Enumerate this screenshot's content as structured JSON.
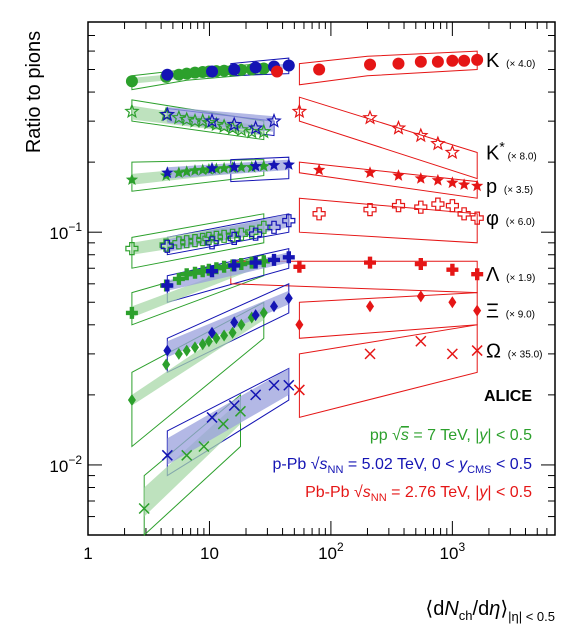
{
  "chart_data": {
    "type": "scatter",
    "xscale": "log",
    "yscale": "log",
    "xlim": [
      1,
      7000
    ],
    "ylim": [
      0.005,
      0.8
    ],
    "xlabel": "⟨dNch/dη⟩|η| < 0.5",
    "ylabel": "Ratio to pions",
    "grid": false,
    "x_tick_labels": [
      "1",
      "10",
      "10²",
      "10³"
    ],
    "y_tick_labels": [
      "10⁻²",
      "10⁻¹"
    ],
    "experiment_label": "ALICE",
    "colors": {
      "pp": "#2ca02c",
      "pPb": "#1414b4",
      "PbPb": "#e51616",
      "pp_band": "#a8d8a8",
      "pPb_band": "#9aa0dc"
    },
    "legend": [
      {
        "key": "pp",
        "text": "pp √s = 7 TeV, |y| < 0.5"
      },
      {
        "key": "pPb",
        "text": "p-Pb √sNN = 5.02 TeV, 0 < yCMS < 0.5"
      },
      {
        "key": "PbPb",
        "text": "Pb-Pb √sNN = 2.76 TeV, |y| < 0.5"
      }
    ],
    "series": [
      {
        "name": "K",
        "scale": "(× 4.0)",
        "marker": "circle",
        "pp": {
          "x": [
            2.3,
            4.4,
            5.6,
            6.5,
            7.6,
            8.8,
            9.9,
            11.4,
            13.2,
            15.5,
            18.3,
            22.3,
            28.0
          ],
          "y": [
            0.445,
            0.465,
            0.475,
            0.48,
            0.485,
            0.488,
            0.49,
            0.492,
            0.494,
            0.496,
            0.498,
            0.5,
            0.505
          ],
          "band": [
            [
              2.3,
              0.435,
              0.46
            ],
            [
              28.0,
              0.49,
              0.52
            ]
          ],
          "model": [
            [
              2.3,
              0.41,
              0.47
            ],
            [
              6.5,
              0.45,
              0.5
            ],
            [
              28.0,
              0.48,
              0.53
            ]
          ]
        },
        "pPb": {
          "x": [
            4.5,
            10.5,
            16.0,
            24.0,
            34.0,
            45.0
          ],
          "y": [
            0.475,
            0.49,
            0.5,
            0.51,
            0.515,
            0.52
          ],
          "band": [
            [
              4.5,
              0.465,
              0.485
            ],
            [
              45.0,
              0.505,
              0.53
            ]
          ],
          "model": [
            [
              15.0,
              0.47,
              0.53
            ],
            [
              45.0,
              0.48,
              0.56
            ]
          ]
        },
        "PbPb": {
          "x": [
            36.0,
            80.0,
            210.0,
            360.0,
            550.0,
            760.0,
            1000.0,
            1250.0,
            1600.0
          ],
          "y": [
            0.49,
            0.5,
            0.525,
            0.53,
            0.54,
            0.54,
            0.545,
            0.545,
            0.55
          ],
          "model": [
            [
              55.0,
              0.43,
              0.53
            ],
            [
              200.0,
              0.47,
              0.57
            ],
            [
              1600.0,
              0.5,
              0.6
            ]
          ]
        }
      },
      {
        "name": "K*",
        "scale": "(× 8.0)",
        "marker": "open-star",
        "pp": {
          "x": [
            2.3,
            4.4,
            5.6,
            6.5,
            7.6,
            8.8,
            9.9,
            11.4,
            13.2,
            15.5,
            18.3,
            22.3,
            28.0
          ],
          "y": [
            0.33,
            0.32,
            0.31,
            0.305,
            0.3,
            0.3,
            0.295,
            0.29,
            0.285,
            0.28,
            0.275,
            0.27,
            0.27
          ],
          "band": [
            [
              2.3,
              0.305,
              0.35
            ],
            [
              28.0,
              0.26,
              0.285
            ]
          ],
          "model": [
            [
              2.3,
              0.3,
              0.37
            ],
            [
              28.0,
              0.25,
              0.3
            ]
          ]
        },
        "pPb": {
          "x": [
            4.5,
            10.5,
            16.0,
            24.0,
            34.0
          ],
          "y": [
            0.32,
            0.3,
            0.29,
            0.28,
            0.3
          ],
          "band": [
            [
              4.5,
              0.295,
              0.345
            ],
            [
              34.0,
              0.27,
              0.315
            ]
          ],
          "model": [
            [
              4.5,
              0.3,
              0.34
            ],
            [
              34.0,
              0.26,
              0.3
            ]
          ]
        },
        "PbPb": {
          "x": [
            55.0,
            210.0,
            360.0,
            550.0,
            760.0,
            1000.0
          ],
          "y": [
            0.33,
            0.31,
            0.28,
            0.26,
            0.24,
            0.22
          ],
          "model": [
            [
              55.0,
              0.3,
              0.38
            ],
            [
              1600.0,
              0.17,
              0.22
            ]
          ]
        }
      },
      {
        "name": "p",
        "scale": "(× 3.5)",
        "marker": "star",
        "pp": {
          "x": [
            2.3,
            4.4,
            5.6,
            6.5,
            7.6,
            8.8,
            9.9,
            11.4,
            13.2,
            15.5,
            18.3,
            22.3,
            28.0
          ],
          "y": [
            0.168,
            0.175,
            0.18,
            0.182,
            0.184,
            0.185,
            0.186,
            0.187,
            0.188,
            0.189,
            0.19,
            0.19,
            0.192
          ],
          "band": [
            [
              2.3,
              0.16,
              0.178
            ],
            [
              28.0,
              0.185,
              0.2
            ]
          ],
          "model": [
            [
              2.3,
              0.15,
              0.2
            ],
            [
              28.0,
              0.175,
              0.205
            ]
          ]
        },
        "pPb": {
          "x": [
            4.5,
            10.5,
            16.0,
            24.0,
            34.0,
            45.0
          ],
          "y": [
            0.18,
            0.188,
            0.19,
            0.192,
            0.194,
            0.195
          ],
          "band": [
            [
              4.5,
              0.17,
              0.19
            ],
            [
              45.0,
              0.185,
              0.205
            ]
          ],
          "model": [
            [
              15.0,
              0.165,
              0.205
            ],
            [
              45.0,
              0.17,
              0.21
            ]
          ]
        },
        "PbPb": {
          "x": [
            80.0,
            210.0,
            360.0,
            550.0,
            760.0,
            1000.0,
            1250.0,
            1600.0
          ],
          "y": [
            0.185,
            0.18,
            0.175,
            0.17,
            0.167,
            0.163,
            0.16,
            0.158
          ],
          "model": [
            [
              55.0,
              0.18,
              0.2
            ],
            [
              1600.0,
              0.14,
              0.165
            ]
          ]
        }
      },
      {
        "name": "φ",
        "scale": "(× 6.0)",
        "marker": "open-cross",
        "pp": {
          "x": [
            2.3,
            4.4,
            5.6,
            6.5,
            7.6,
            8.8,
            9.9,
            11.4,
            13.2,
            15.5,
            18.3,
            22.3,
            28.0
          ],
          "y": [
            0.085,
            0.088,
            0.09,
            0.091,
            0.092,
            0.093,
            0.094,
            0.095,
            0.096,
            0.097,
            0.098,
            0.1,
            0.105
          ],
          "band": [
            [
              2.3,
              0.08,
              0.09
            ],
            [
              28.0,
              0.098,
              0.112
            ]
          ],
          "model": [
            [
              2.3,
              0.07,
              0.095
            ],
            [
              28.0,
              0.09,
              0.12
            ]
          ]
        },
        "pPb": {
          "x": [
            4.5,
            10.5,
            16.0,
            24.0,
            34.0,
            45.0
          ],
          "y": [
            0.087,
            0.09,
            0.094,
            0.098,
            0.105,
            0.112
          ],
          "band": [
            [
              4.5,
              0.082,
              0.093
            ],
            [
              45.0,
              0.105,
              0.12
            ]
          ],
          "model": [
            [
              4.5,
              0.08,
              0.095
            ],
            [
              45.0,
              0.1,
              0.12
            ]
          ]
        },
        "PbPb": {
          "x": [
            80.0,
            210.0,
            360.0,
            550.0,
            760.0,
            1000.0,
            1250.0,
            1600.0
          ],
          "y": [
            0.12,
            0.125,
            0.13,
            0.128,
            0.132,
            0.13,
            0.12,
            0.115
          ],
          "model": [
            [
              55.0,
              0.1,
              0.14
            ],
            [
              1600.0,
              0.09,
              0.12
            ]
          ]
        }
      },
      {
        "name": "Λ",
        "scale": "(× 1.9)",
        "marker": "cross",
        "pp": {
          "x": [
            2.3,
            4.4,
            5.6,
            6.5,
            7.6,
            8.8,
            9.9,
            11.4,
            13.2,
            15.5,
            18.3,
            22.3,
            28.0
          ],
          "y": [
            0.045,
            0.059,
            0.063,
            0.066,
            0.067,
            0.068,
            0.069,
            0.07,
            0.071,
            0.072,
            0.073,
            0.074,
            0.075
          ],
          "band": [
            [
              2.3,
              0.043,
              0.048
            ],
            [
              28.0,
              0.072,
              0.078
            ]
          ],
          "model": [
            [
              2.3,
              0.04,
              0.055
            ],
            [
              28.0,
              0.065,
              0.08
            ]
          ]
        },
        "pPb": {
          "x": [
            4.5,
            10.5,
            16.0,
            24.0,
            34.0,
            45.0
          ],
          "y": [
            0.059,
            0.068,
            0.072,
            0.074,
            0.076,
            0.078
          ],
          "band": [
            [
              4.5,
              0.056,
              0.062
            ],
            [
              45.0,
              0.074,
              0.082
            ]
          ],
          "model": [
            [
              4.5,
              0.05,
              0.065
            ],
            [
              45.0,
              0.07,
              0.085
            ]
          ]
        },
        "PbPb": {
          "x": [
            55.0,
            210.0,
            550.0,
            1000.0,
            1600.0
          ],
          "y": [
            0.071,
            0.074,
            0.073,
            0.069,
            0.066
          ],
          "model": [
            [
              15.0,
              0.06,
              0.075
            ],
            [
              1600.0,
              0.055,
              0.075
            ]
          ]
        }
      },
      {
        "name": "Ξ",
        "scale": "(× 9.0)",
        "marker": "diamond",
        "pp": {
          "x": [
            2.3,
            4.4,
            5.6,
            6.5,
            7.6,
            8.8,
            9.9,
            11.4,
            13.2,
            15.5,
            18.3,
            22.3,
            28.0
          ],
          "y": [
            0.019,
            0.027,
            0.03,
            0.031,
            0.032,
            0.033,
            0.034,
            0.035,
            0.036,
            0.037,
            0.04,
            0.043,
            0.045
          ],
          "band": [
            [
              2.3,
              0.018,
              0.02
            ],
            [
              28.0,
              0.042,
              0.048
            ]
          ],
          "model": [
            [
              2.3,
              0.012,
              0.025
            ],
            [
              28.0,
              0.035,
              0.05
            ]
          ]
        },
        "pPb": {
          "x": [
            4.5,
            10.5,
            16.0,
            24.0,
            34.0,
            45.0
          ],
          "y": [
            0.031,
            0.037,
            0.041,
            0.044,
            0.048,
            0.052
          ],
          "band": [
            [
              4.5,
              0.029,
              0.034
            ],
            [
              45.0,
              0.049,
              0.056
            ]
          ],
          "model": [
            [
              4.5,
              0.025,
              0.035
            ],
            [
              45.0,
              0.045,
              0.06
            ]
          ]
        },
        "PbPb": {
          "x": [
            55.0,
            210.0,
            550.0,
            1000.0,
            1600.0
          ],
          "y": [
            0.04,
            0.048,
            0.053,
            0.05,
            0.046
          ],
          "model": [
            [
              55.0,
              0.035,
              0.05
            ],
            [
              1600.0,
              0.04,
              0.055
            ]
          ]
        }
      },
      {
        "name": "Ω",
        "scale": "(× 35.0)",
        "marker": "x",
        "pp": {
          "x": [
            2.9,
            6.5,
            9.0,
            13.0,
            18.0
          ],
          "y": [
            0.0065,
            0.011,
            0.012,
            0.015,
            0.017
          ],
          "band": [
            [
              2.9,
              0.006,
              0.008
            ],
            [
              18.0,
              0.015,
              0.019
            ]
          ],
          "model": [
            [
              2.9,
              0.005,
              0.009
            ],
            [
              18.0,
              0.012,
              0.02
            ]
          ]
        },
        "pPb": {
          "x": [
            4.5,
            10.5,
            16.0,
            24.0,
            34.0,
            45.0
          ],
          "y": [
            0.011,
            0.016,
            0.018,
            0.02,
            0.022,
            0.022
          ],
          "band": [
            [
              4.5,
              0.01,
              0.013
            ],
            [
              45.0,
              0.02,
              0.026
            ]
          ],
          "model": [
            [
              4.5,
              0.009,
              0.014
            ],
            [
              45.0,
              0.019,
              0.026
            ]
          ]
        },
        "PbPb": {
          "x": [
            55.0,
            210.0,
            550.0,
            1000.0,
            1600.0
          ],
          "y": [
            0.021,
            0.03,
            0.034,
            0.03,
            0.031
          ],
          "model": [
            [
              55.0,
              0.016,
              0.03
            ],
            [
              1600.0,
              0.025,
              0.04
            ]
          ]
        }
      }
    ]
  }
}
